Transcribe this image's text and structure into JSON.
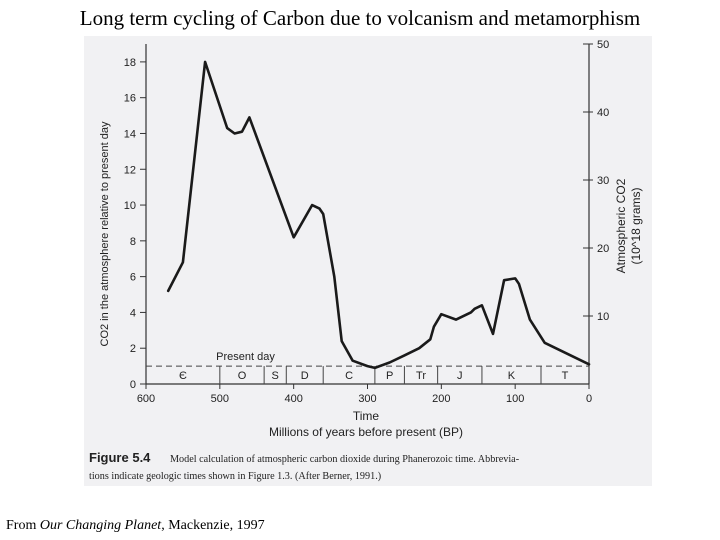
{
  "slide": {
    "title": "Long term cycling of Carbon due to volcanism and metamorphism",
    "credit_prefix": "From ",
    "credit_book": "Our Changing Planet",
    "credit_suffix": ", Mackenzie, 1997"
  },
  "figure": {
    "caption_number": "Figure 5.4",
    "caption_line1": "Model calculation of atmospheric carbon dioxide during Phanerozoic time. Abbrevia-",
    "caption_line2": "tions indicate geologic times shown in Figure 1.3. (After Berner, 1991.)"
  },
  "chart_data": {
    "type": "line",
    "xlabel": "Time",
    "xlabel2": "Millions of years before present (BP)",
    "ylabel": "CO2 in the atmosphere relative to present day",
    "ylabel_right": "Atmospheric CO2",
    "ylabel_right_units": "(10^18 grams)",
    "xlim": [
      600,
      0
    ],
    "ylim": [
      0,
      19
    ],
    "ylim_right": [
      0,
      50
    ],
    "x_ticks": [
      600,
      500,
      400,
      300,
      200,
      100,
      0
    ],
    "y_ticks": [
      0,
      2,
      4,
      6,
      8,
      10,
      12,
      14,
      16,
      18
    ],
    "y_right_ticks": [
      10,
      20,
      30,
      40,
      50
    ],
    "reference_line": {
      "label": "Present day",
      "y": 1
    },
    "periods": [
      "Є",
      "O",
      "S",
      "D",
      "C",
      "P",
      "Tr",
      "J",
      "K",
      "T"
    ],
    "period_boundaries": [
      500,
      440,
      410,
      360,
      290,
      250,
      205,
      145,
      65
    ],
    "series": [
      {
        "x": [
          570,
          550,
          520,
          490,
          480,
          470,
          460,
          400,
          375,
          365,
          360,
          345,
          335,
          320,
          300,
          290,
          270,
          250,
          230,
          215,
          210,
          200,
          180,
          160,
          155,
          145,
          130,
          125,
          115,
          100,
          95,
          80,
          60,
          0
        ],
        "y": [
          5.2,
          6.8,
          18,
          14.3,
          14,
          14.1,
          14.9,
          8.2,
          10,
          9.8,
          9.5,
          6,
          2.4,
          1.3,
          1.0,
          0.9,
          1.2,
          1.6,
          2.0,
          2.5,
          3.2,
          3.9,
          3.6,
          4.0,
          4.2,
          4.4,
          2.8,
          3.8,
          5.8,
          5.9,
          5.6,
          3.6,
          2.3,
          1.1
        ]
      }
    ]
  }
}
